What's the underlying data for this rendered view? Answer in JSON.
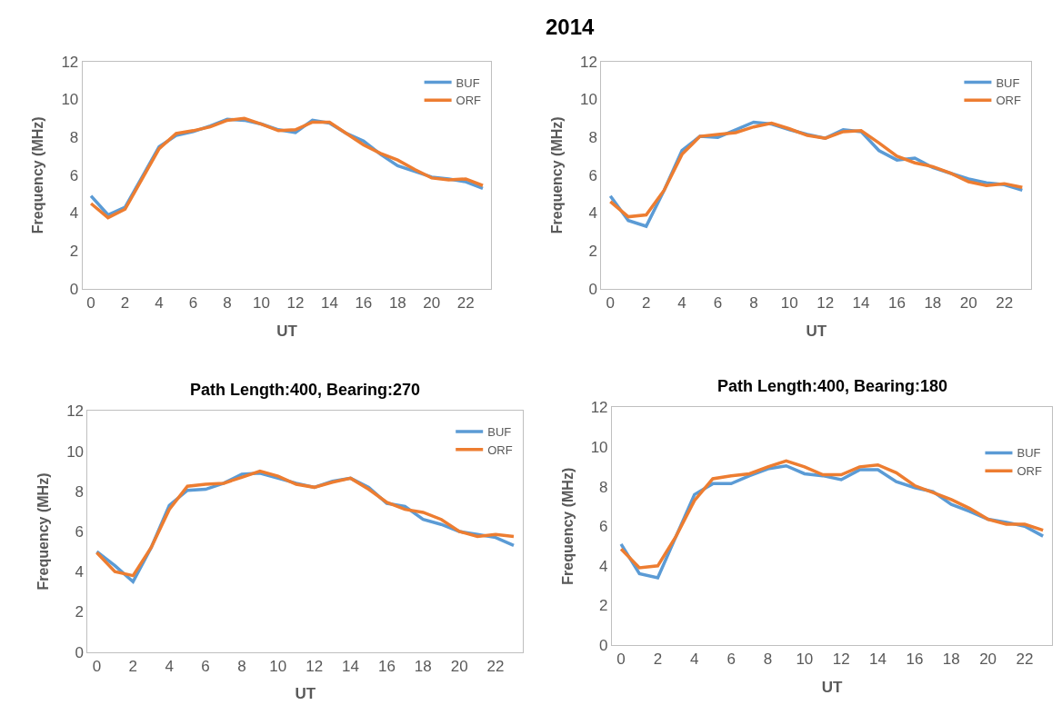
{
  "chart_data": [
    {
      "type": "line",
      "xlabel": "UT",
      "ylabel": "Frequency (MHz)",
      "x": [
        0,
        1,
        2,
        3,
        4,
        5,
        6,
        7,
        8,
        9,
        10,
        11,
        12,
        13,
        14,
        15,
        16,
        17,
        18,
        19,
        20,
        21,
        22,
        23
      ],
      "xlim": [
        -0.5,
        23.5
      ],
      "xticks": [
        0,
        2,
        4,
        6,
        8,
        10,
        12,
        14,
        16,
        18,
        20,
        22
      ],
      "ylim": [
        0,
        12
      ],
      "yticks": [
        0,
        2,
        4,
        6,
        8,
        10,
        12
      ],
      "legend": "top right",
      "grid": false,
      "series": [
        {
          "name": "BUF",
          "color": "#5b9bd5",
          "values": [
            4.9,
            3.9,
            4.3,
            5.9,
            7.5,
            8.1,
            8.3,
            8.6,
            8.95,
            8.9,
            8.7,
            8.4,
            8.25,
            8.9,
            8.75,
            8.2,
            7.8,
            7.1,
            6.5,
            6.2,
            5.9,
            5.8,
            5.65,
            5.3
          ]
        },
        {
          "name": "ORF",
          "color": "#ed7d31",
          "values": [
            4.5,
            3.75,
            4.2,
            5.8,
            7.4,
            8.2,
            8.35,
            8.55,
            8.9,
            9.0,
            8.7,
            8.35,
            8.4,
            8.8,
            8.8,
            8.2,
            7.6,
            7.15,
            6.8,
            6.3,
            5.85,
            5.75,
            5.8,
            5.45
          ]
        }
      ]
    },
    {
      "type": "line",
      "title": "2014",
      "xlabel": "UT",
      "ylabel": "Frequency (MHz)",
      "x": [
        0,
        1,
        2,
        3,
        4,
        5,
        6,
        7,
        8,
        9,
        10,
        11,
        12,
        13,
        14,
        15,
        16,
        17,
        18,
        19,
        20,
        21,
        22,
        23
      ],
      "xlim": [
        -0.5,
        23.5
      ],
      "xticks": [
        0,
        2,
        4,
        6,
        8,
        10,
        12,
        14,
        16,
        18,
        20,
        22
      ],
      "ylim": [
        0,
        12
      ],
      "yticks": [
        0,
        2,
        4,
        6,
        8,
        10,
        12
      ],
      "legend": "top right",
      "grid": false,
      "series": [
        {
          "name": "BUF",
          "color": "#5b9bd5",
          "values": [
            4.9,
            3.6,
            3.3,
            5.2,
            7.3,
            8.05,
            8.0,
            8.4,
            8.8,
            8.7,
            8.4,
            8.15,
            7.95,
            8.4,
            8.3,
            7.3,
            6.8,
            6.9,
            6.4,
            6.1,
            5.8,
            5.6,
            5.5,
            5.2
          ]
        },
        {
          "name": "ORF",
          "color": "#ed7d31",
          "values": [
            4.6,
            3.8,
            3.9,
            5.2,
            7.1,
            8.05,
            8.15,
            8.25,
            8.55,
            8.75,
            8.45,
            8.1,
            7.95,
            8.3,
            8.35,
            7.7,
            7.0,
            6.65,
            6.45,
            6.1,
            5.65,
            5.45,
            5.55,
            5.35
          ]
        }
      ]
    },
    {
      "type": "line",
      "title": "Path Length:400, Bearing:270",
      "xlabel": "UT",
      "ylabel": "Frequency (MHz)",
      "x": [
        0,
        1,
        2,
        3,
        4,
        5,
        6,
        7,
        8,
        9,
        10,
        11,
        12,
        13,
        14,
        15,
        16,
        17,
        18,
        19,
        20,
        21,
        22,
        23
      ],
      "xlim": [
        -0.5,
        23.5
      ],
      "xticks": [
        0,
        2,
        4,
        6,
        8,
        10,
        12,
        14,
        16,
        18,
        20,
        22
      ],
      "ylim": [
        0,
        12
      ],
      "yticks": [
        0,
        2,
        4,
        6,
        8,
        10,
        12
      ],
      "legend": "top right",
      "grid": false,
      "series": [
        {
          "name": "BUF",
          "color": "#5b9bd5",
          "values": [
            5.0,
            4.3,
            3.5,
            5.2,
            7.3,
            8.05,
            8.1,
            8.4,
            8.85,
            8.9,
            8.65,
            8.4,
            8.2,
            8.5,
            8.65,
            8.2,
            7.4,
            7.25,
            6.6,
            6.35,
            6.0,
            5.85,
            5.7,
            5.3
          ]
        },
        {
          "name": "ORF",
          "color": "#ed7d31",
          "values": [
            4.95,
            4.0,
            3.8,
            5.2,
            7.1,
            8.25,
            8.35,
            8.4,
            8.7,
            9.0,
            8.75,
            8.35,
            8.2,
            8.45,
            8.65,
            8.1,
            7.45,
            7.1,
            6.95,
            6.6,
            6.0,
            5.75,
            5.85,
            5.75
          ]
        }
      ]
    },
    {
      "type": "line",
      "title": "Path Length:400, Bearing:180",
      "xlabel": "UT",
      "ylabel": "Frequency (MHz)",
      "x": [
        0,
        1,
        2,
        3,
        4,
        5,
        6,
        7,
        8,
        9,
        10,
        11,
        12,
        13,
        14,
        15,
        16,
        17,
        18,
        19,
        20,
        21,
        22,
        23
      ],
      "xlim": [
        -0.5,
        23.5
      ],
      "xticks": [
        0,
        2,
        4,
        6,
        8,
        10,
        12,
        14,
        16,
        18,
        20,
        22
      ],
      "ylim": [
        0,
        12
      ],
      "yticks": [
        0,
        2,
        4,
        6,
        8,
        10,
        12
      ],
      "legend": "right",
      "grid": false,
      "series": [
        {
          "name": "BUF",
          "color": "#5b9bd5",
          "values": [
            5.1,
            3.6,
            3.4,
            5.5,
            7.6,
            8.15,
            8.15,
            8.55,
            8.9,
            9.05,
            8.65,
            8.55,
            8.35,
            8.85,
            8.85,
            8.25,
            7.95,
            7.75,
            7.1,
            6.75,
            6.35,
            6.2,
            6.0,
            5.5
          ]
        },
        {
          "name": "ORF",
          "color": "#ed7d31",
          "values": [
            4.85,
            3.9,
            4.0,
            5.5,
            7.3,
            8.4,
            8.55,
            8.65,
            9.0,
            9.3,
            9.0,
            8.6,
            8.6,
            9.0,
            9.1,
            8.7,
            8.05,
            7.7,
            7.35,
            6.9,
            6.35,
            6.1,
            6.1,
            5.8
          ]
        }
      ]
    }
  ]
}
